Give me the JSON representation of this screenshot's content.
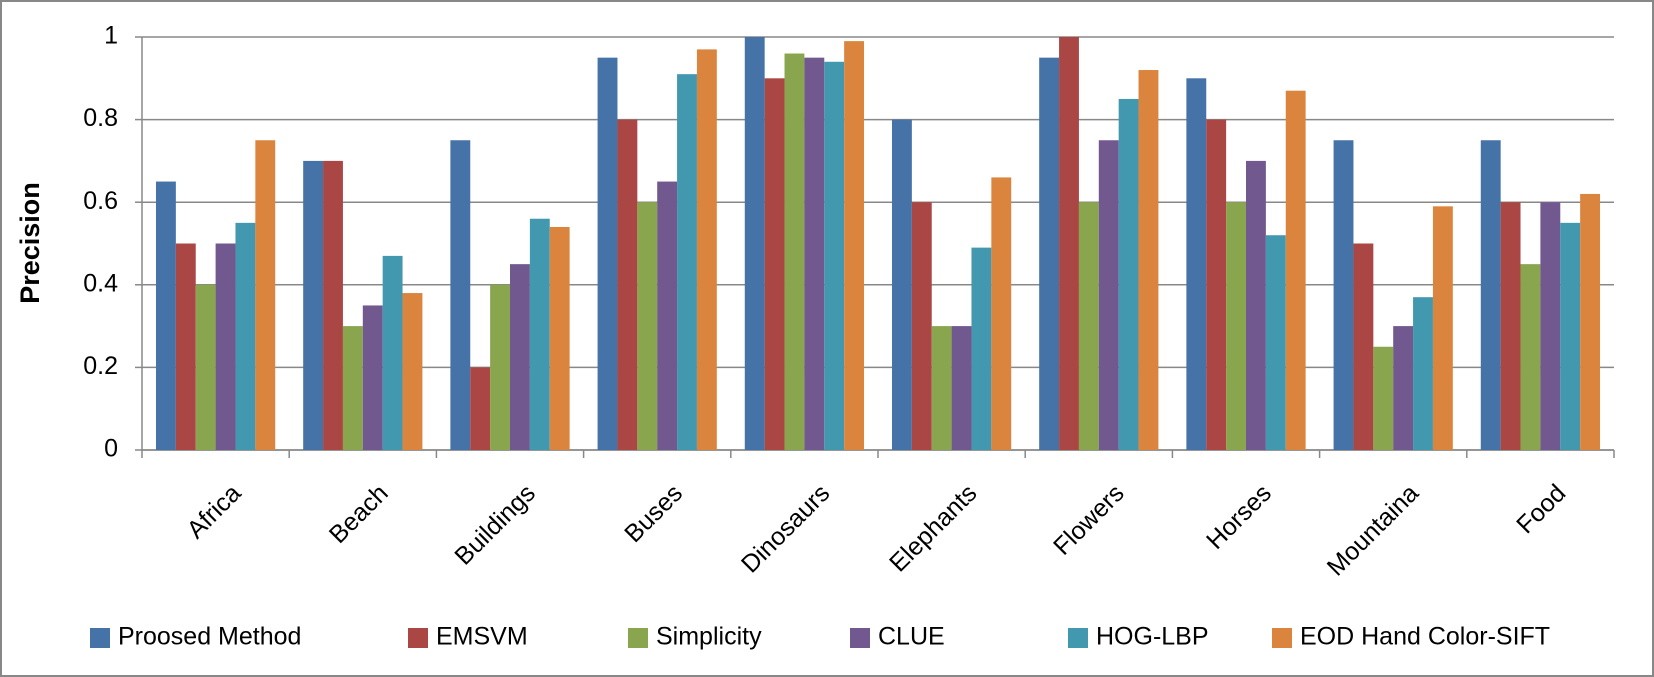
{
  "chart_data": {
    "type": "bar",
    "y_label": "Precision",
    "categories": [
      "Africa",
      "Beach",
      "Buildings",
      "Buses",
      "Dinosaurs",
      "Elephants",
      "Flowers",
      "Horses",
      "Mountaina",
      "Food"
    ],
    "series": [
      {
        "name": "Proosed Method",
        "color": "#4572a7",
        "values": [
          0.65,
          0.7,
          0.75,
          0.95,
          1.0,
          0.8,
          0.95,
          0.9,
          0.75,
          0.75
        ]
      },
      {
        "name": "EMSVM",
        "color": "#aa4643",
        "values": [
          0.5,
          0.7,
          0.2,
          0.8,
          0.9,
          0.6,
          1.0,
          0.8,
          0.5,
          0.6
        ]
      },
      {
        "name": "Simplicity",
        "color": "#89a54e",
        "values": [
          0.4,
          0.3,
          0.4,
          0.6,
          0.96,
          0.3,
          0.6,
          0.6,
          0.25,
          0.45
        ]
      },
      {
        "name": "CLUE",
        "color": "#71588f",
        "values": [
          0.5,
          0.35,
          0.45,
          0.65,
          0.95,
          0.3,
          0.75,
          0.7,
          0.3,
          0.6
        ]
      },
      {
        "name": "HOG-LBP",
        "color": "#4198af",
        "values": [
          0.55,
          0.47,
          0.56,
          0.91,
          0.94,
          0.49,
          0.85,
          0.52,
          0.37,
          0.55
        ]
      },
      {
        "name": "EOD Hand Color-SIFT",
        "color": "#db843d",
        "values": [
          0.75,
          0.38,
          0.54,
          0.97,
          0.99,
          0.66,
          0.92,
          0.87,
          0.59,
          0.62
        ]
      }
    ],
    "ylim": [
      0,
      1
    ],
    "yticks": [
      0,
      0.2,
      0.4,
      0.6,
      0.8,
      1
    ],
    "grid": true,
    "legend": "bottom"
  }
}
